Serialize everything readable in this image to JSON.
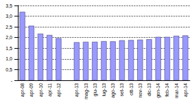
{
  "chart_data": {
    "type": "bar",
    "categories": [
      "apr-08",
      "apr-09",
      "apr-10",
      "apr-11",
      "apr-12",
      null,
      "apr-13",
      "mag-13",
      "giu-13",
      "lug-13",
      "ago-13",
      "set-13",
      "ott-13",
      "nov-13",
      "dic-13",
      "gen-14",
      "feb-14",
      "mar-14",
      "apr-14"
    ],
    "values": [
      3.2,
      2.55,
      2.18,
      2.12,
      1.97,
      null,
      1.78,
      1.8,
      1.8,
      1.83,
      1.82,
      1.87,
      1.88,
      1.9,
      1.92,
      2.03,
      2.03,
      2.08,
      2.1
    ],
    "color": "#9999ff",
    "ylim": [
      0,
      3.5
    ],
    "yticks": [
      {
        "value": 0,
        "label": "-"
      },
      {
        "value": 0.5,
        "label": "0,5"
      },
      {
        "value": 1,
        "label": "1,0"
      },
      {
        "value": 1.5,
        "label": "1,5"
      },
      {
        "value": 2,
        "label": "2,0"
      },
      {
        "value": 2.5,
        "label": "2,5"
      },
      {
        "value": 3,
        "label": "3,0"
      },
      {
        "value": 3.5,
        "label": "3,5"
      }
    ],
    "grid": true
  }
}
